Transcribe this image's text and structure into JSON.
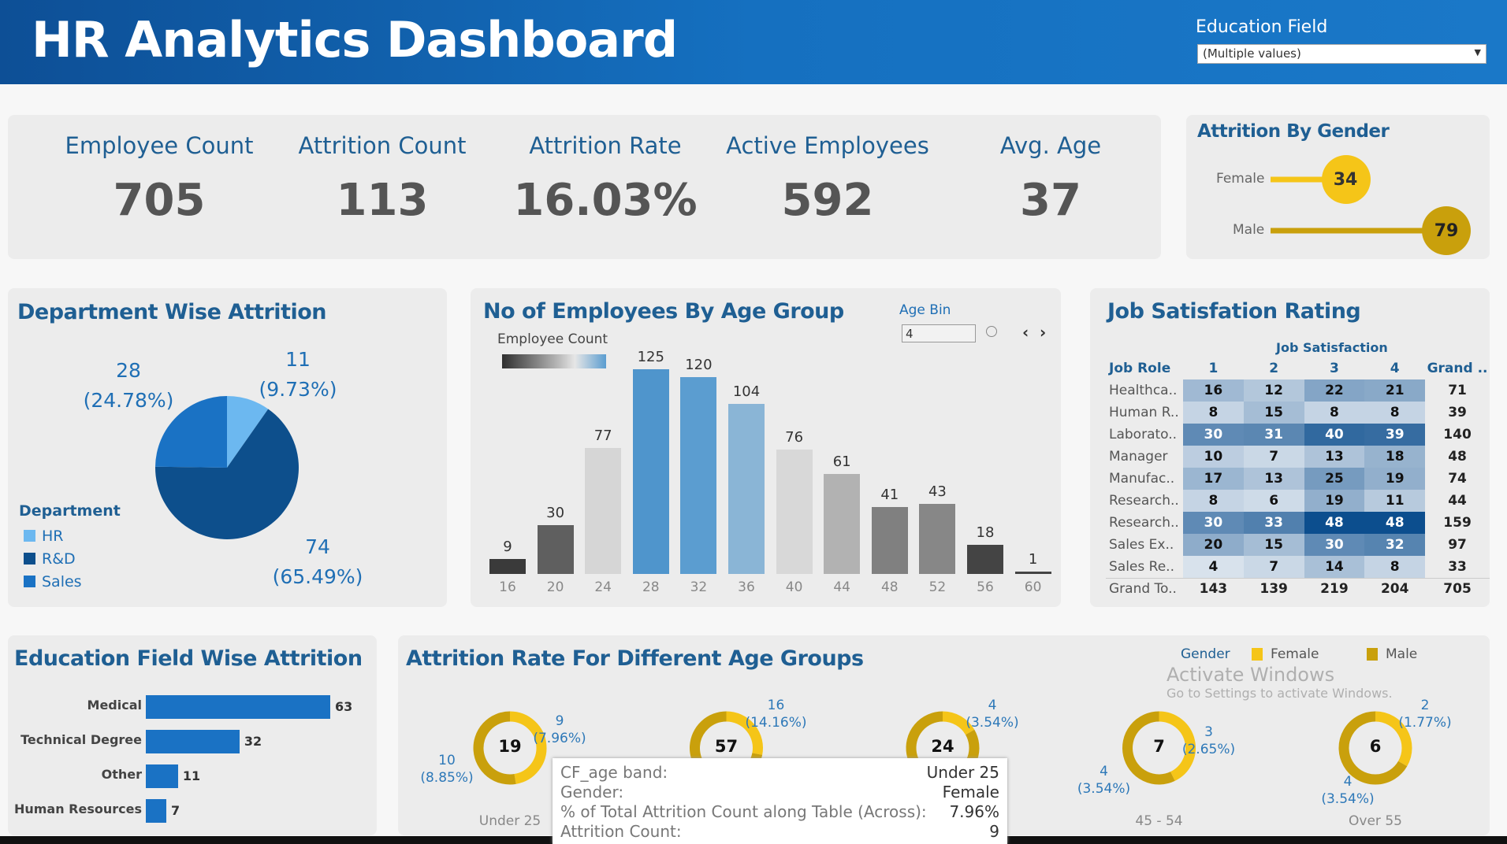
{
  "header": {
    "title": "HR Analytics Dashboard",
    "filter_label": "Education Field",
    "filter_value": "(Multiple values)"
  },
  "kpis": [
    {
      "label": "Employee Count",
      "value": "705"
    },
    {
      "label": "Attrition Count",
      "value": "113"
    },
    {
      "label": "Attrition Rate",
      "value": "16.03%"
    },
    {
      "label": "Active Employees",
      "value": "592"
    },
    {
      "label": "Avg. Age",
      "value": "37"
    }
  ],
  "gender": {
    "title": "Attrition By Gender",
    "items": [
      {
        "label": "Female",
        "value": 34,
        "color": "#f5c518"
      },
      {
        "label": "Male",
        "value": 79,
        "color": "#c9a00c"
      }
    ]
  },
  "department": {
    "title": "Department Wise Attrition",
    "legend_title": "Department",
    "slices": [
      {
        "name": "HR",
        "count": "11",
        "pct": "(9.73%)",
        "value": 9.73,
        "color": "#6cb8f0"
      },
      {
        "name": "R&D",
        "count": "74",
        "pct": "(65.49%)",
        "value": 65.49,
        "color": "#0d4f8c"
      },
      {
        "name": "Sales",
        "count": "28",
        "pct": "(24.78%)",
        "value": 24.78,
        "color": "#1a72c4"
      }
    ]
  },
  "age": {
    "title": "No of Employees By Age Group",
    "legend_title": "Employee Count",
    "bin_label": "Age Bin",
    "bin_value": "4",
    "chart_data": {
      "type": "bar",
      "categories": [
        "16",
        "20",
        "24",
        "28",
        "32",
        "36",
        "40",
        "44",
        "48",
        "52",
        "56",
        "60"
      ],
      "values": [
        9,
        30,
        77,
        125,
        120,
        104,
        76,
        61,
        41,
        43,
        18,
        1
      ],
      "colors": [
        "#3a3a3a",
        "#5f5f5f",
        "#d6d6d6",
        "#4f95cc",
        "#5b9dd0",
        "#8ab5d6",
        "#d8d8d8",
        "#b2b2b2",
        "#808080",
        "#878787",
        "#444444",
        "#444444"
      ]
    }
  },
  "job": {
    "title": "Job Satisfation Rating",
    "col_group": "Job Satisfaction",
    "headers": [
      "Job Role",
      "1",
      "2",
      "3",
      "4",
      "Grand .."
    ],
    "rows": [
      [
        "Healthca..",
        16,
        12,
        22,
        21,
        71
      ],
      [
        "Human R..",
        8,
        15,
        8,
        8,
        39
      ],
      [
        "Laborato..",
        30,
        31,
        40,
        39,
        140
      ],
      [
        "Manager",
        10,
        7,
        13,
        18,
        48
      ],
      [
        "Manufac..",
        17,
        13,
        25,
        19,
        74
      ],
      [
        "Research..",
        8,
        6,
        19,
        11,
        44
      ],
      [
        "Research..",
        30,
        33,
        48,
        48,
        159
      ],
      [
        "Sales Ex..",
        20,
        15,
        30,
        32,
        97
      ],
      [
        "Sales Re..",
        4,
        7,
        14,
        8,
        33
      ],
      [
        "Grand To..",
        143,
        139,
        219,
        204,
        705
      ]
    ]
  },
  "education": {
    "title": "Education Field Wise Attrition",
    "chart_data": {
      "type": "bar",
      "categories": [
        "Medical",
        "Technical Degree",
        "Other",
        "Human Resources"
      ],
      "values": [
        63,
        32,
        11,
        7
      ],
      "color": "#1a72c4"
    }
  },
  "attrition_age": {
    "title": "Attrition Rate For Different Age Groups",
    "legend_title": "Gender",
    "legend": [
      {
        "label": "Female",
        "color": "#f5c518"
      },
      {
        "label": "Male",
        "color": "#c9a00c"
      }
    ],
    "chart_data": {
      "type": "pie",
      "groups": [
        {
          "label": "Under 25",
          "total": "19",
          "female": 9,
          "male": 10,
          "female_label": "9",
          "female_pct": "(7.96%)",
          "male_label": "10",
          "male_pct": "(8.85%)"
        },
        {
          "label": "",
          "total": "57",
          "female": 16,
          "male": 41,
          "female_label": "16",
          "female_pct": "(14.16%)",
          "male_label": "",
          "male_pct": ""
        },
        {
          "label": "",
          "total": "24",
          "female": 4,
          "male": 20,
          "female_label": "4",
          "female_pct": "(3.54%)",
          "male_label": "",
          "male_pct": ""
        },
        {
          "label": "45 - 54",
          "total": "7",
          "female": 3,
          "male": 4,
          "female_label": "3",
          "female_pct": "(2.65%)",
          "male_label": "4",
          "male_pct": "(3.54%)"
        },
        {
          "label": "Over 55",
          "total": "6",
          "female": 2,
          "male": 4,
          "female_label": "2",
          "female_pct": "(1.77%)",
          "male_label": "4",
          "male_pct": "(3.54%)"
        }
      ]
    }
  },
  "tooltip": {
    "rows": [
      {
        "k": "CF_age band:",
        "v": "Under 25"
      },
      {
        "k": "Gender:",
        "v": "Female"
      },
      {
        "k": "% of Total Attrition Count along Table (Across):",
        "v": "7.96%"
      },
      {
        "k": "Attrition Count:",
        "v": "9"
      }
    ]
  },
  "watermark": {
    "line1": "Activate Windows",
    "line2": "Go to Settings to activate Windows."
  }
}
